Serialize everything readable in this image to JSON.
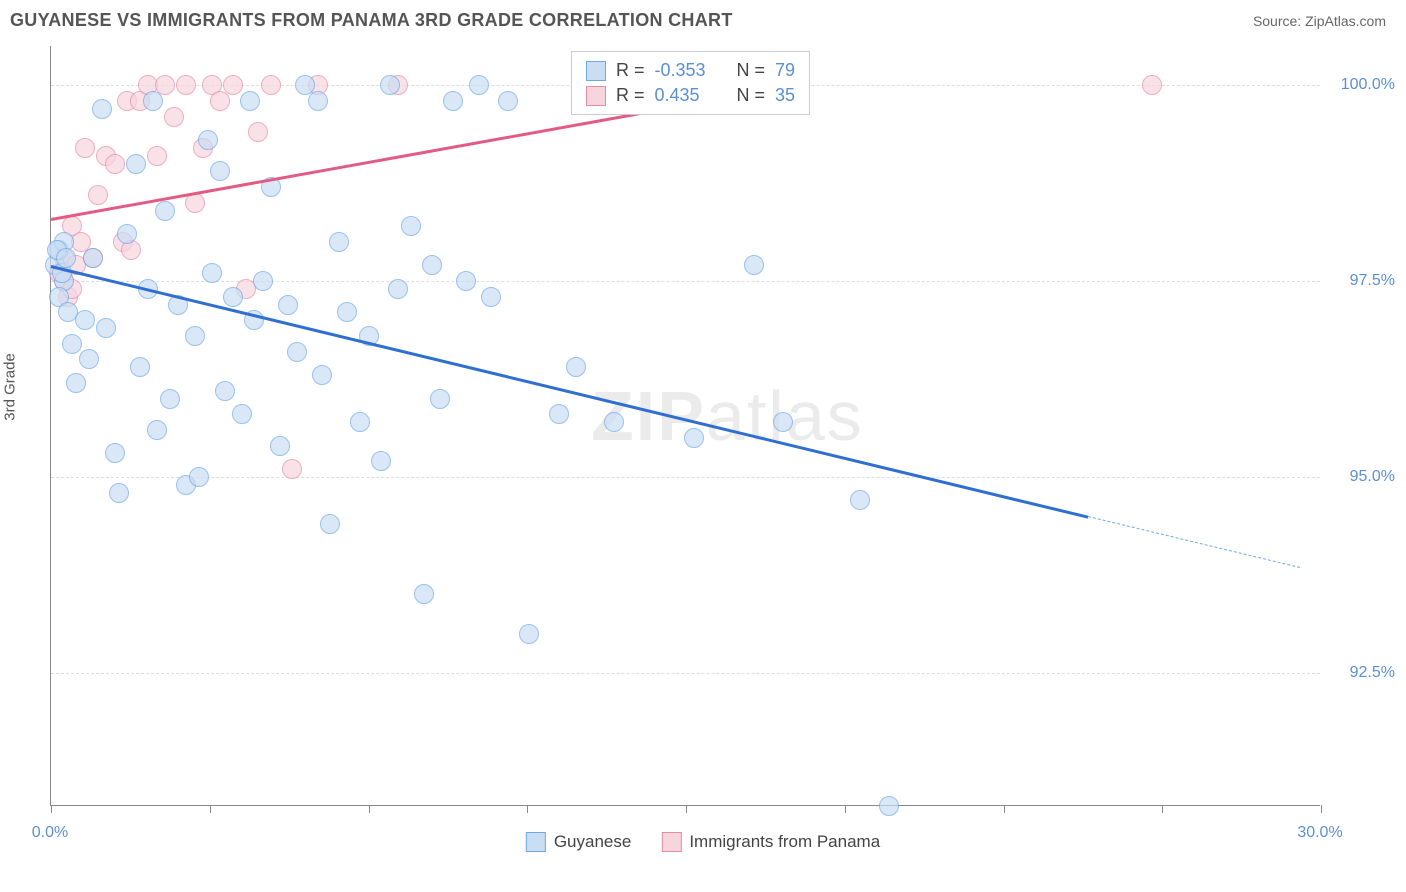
{
  "title": "GUYANESE VS IMMIGRANTS FROM PANAMA 3RD GRADE CORRELATION CHART",
  "source_label": "Source: ZipAtlas.com",
  "ylabel": "3rd Grade",
  "watermark": {
    "bold": "ZIP",
    "rest": "atlas"
  },
  "chart": {
    "type": "scatter",
    "xlim": [
      0,
      30
    ],
    "ylim": [
      90.8,
      100.5
    ],
    "xtick_positions": [
      0,
      3.75,
      7.5,
      11.25,
      15,
      18.75,
      22.5,
      26.25,
      30
    ],
    "xtick_labels": {
      "0": "0.0%",
      "30": "30.0%"
    },
    "ytick_positions": [
      92.5,
      95.0,
      97.5,
      100.0
    ],
    "ytick_labels": [
      "92.5%",
      "95.0%",
      "97.5%",
      "100.0%"
    ],
    "background_color": "#ffffff",
    "grid_color": "#dddddd",
    "axis_color": "#888888",
    "label_color": "#5b8fd6",
    "marker_radius": 10,
    "marker_stroke_width": 1.5,
    "series": [
      {
        "name": "Guyanese",
        "fill": "#c9ddf3",
        "stroke": "#6fa8e8",
        "fill_opacity": 0.7,
        "r": -0.353,
        "n": 79,
        "trend": {
          "x1": 0,
          "y1": 97.7,
          "x2": 24.5,
          "y2": 94.5,
          "color": "#2f6fd1",
          "width": 2.5
        },
        "trend_ext": {
          "x1": 24.5,
          "y1": 94.5,
          "x2": 29.5,
          "y2": 93.85,
          "color": "#6fa8e8"
        },
        "points": [
          [
            0.1,
            97.7
          ],
          [
            0.2,
            97.9
          ],
          [
            0.3,
            98.0
          ],
          [
            0.3,
            97.5
          ],
          [
            0.2,
            97.3
          ],
          [
            0.4,
            97.1
          ],
          [
            0.15,
            97.9
          ],
          [
            0.25,
            97.6
          ],
          [
            0.35,
            97.8
          ],
          [
            0.5,
            96.7
          ],
          [
            0.6,
            96.2
          ],
          [
            0.8,
            97.0
          ],
          [
            0.9,
            96.5
          ],
          [
            1.0,
            97.8
          ],
          [
            1.2,
            99.7
          ],
          [
            1.3,
            96.9
          ],
          [
            1.5,
            95.3
          ],
          [
            1.6,
            94.8
          ],
          [
            1.8,
            98.1
          ],
          [
            2.0,
            99.0
          ],
          [
            2.1,
            96.4
          ],
          [
            2.3,
            97.4
          ],
          [
            2.4,
            99.8
          ],
          [
            2.5,
            95.6
          ],
          [
            2.7,
            98.4
          ],
          [
            2.8,
            96.0
          ],
          [
            3.0,
            97.2
          ],
          [
            3.2,
            94.9
          ],
          [
            3.4,
            96.8
          ],
          [
            3.5,
            95.0
          ],
          [
            3.7,
            99.3
          ],
          [
            3.8,
            97.6
          ],
          [
            4.0,
            98.9
          ],
          [
            4.1,
            96.1
          ],
          [
            4.3,
            97.3
          ],
          [
            4.5,
            95.8
          ],
          [
            4.7,
            99.8
          ],
          [
            4.8,
            97.0
          ],
          [
            5.0,
            97.5
          ],
          [
            5.2,
            98.7
          ],
          [
            5.4,
            95.4
          ],
          [
            5.6,
            97.2
          ],
          [
            5.8,
            96.6
          ],
          [
            6.0,
            100.0
          ],
          [
            6.3,
            99.8
          ],
          [
            6.4,
            96.3
          ],
          [
            6.6,
            94.4
          ],
          [
            6.8,
            98.0
          ],
          [
            7.0,
            97.1
          ],
          [
            7.3,
            95.7
          ],
          [
            7.5,
            96.8
          ],
          [
            7.8,
            95.2
          ],
          [
            8.0,
            100.0
          ],
          [
            8.2,
            97.4
          ],
          [
            8.5,
            98.2
          ],
          [
            8.8,
            93.5
          ],
          [
            9.0,
            97.7
          ],
          [
            9.2,
            96.0
          ],
          [
            9.5,
            99.8
          ],
          [
            9.8,
            97.5
          ],
          [
            10.1,
            100.0
          ],
          [
            10.4,
            97.3
          ],
          [
            10.8,
            99.8
          ],
          [
            11.3,
            93.0
          ],
          [
            12.0,
            95.8
          ],
          [
            12.4,
            96.4
          ],
          [
            13.3,
            95.7
          ],
          [
            14.8,
            100.0
          ],
          [
            15.2,
            95.5
          ],
          [
            16.0,
            100.0
          ],
          [
            16.6,
            97.7
          ],
          [
            17.3,
            95.7
          ],
          [
            19.1,
            94.7
          ],
          [
            19.8,
            90.8
          ]
        ]
      },
      {
        "name": "Immigrants from Panama",
        "fill": "#f7d5df",
        "stroke": "#e88ba5",
        "fill_opacity": 0.7,
        "r": 0.435,
        "n": 35,
        "trend": {
          "x1": 0,
          "y1": 98.3,
          "x2": 17.5,
          "y2": 100.0,
          "color": "#e35b82",
          "width": 2.5
        },
        "points": [
          [
            0.2,
            97.6
          ],
          [
            0.3,
            97.8
          ],
          [
            0.4,
            97.3
          ],
          [
            0.5,
            98.2
          ],
          [
            0.3,
            97.5
          ],
          [
            0.5,
            97.4
          ],
          [
            0.6,
            97.7
          ],
          [
            0.7,
            98.0
          ],
          [
            0.8,
            99.2
          ],
          [
            1.0,
            97.8
          ],
          [
            1.1,
            98.6
          ],
          [
            1.3,
            99.1
          ],
          [
            1.5,
            99.0
          ],
          [
            1.7,
            98.0
          ],
          [
            1.8,
            99.8
          ],
          [
            1.9,
            97.9
          ],
          [
            2.1,
            99.8
          ],
          [
            2.3,
            100.0
          ],
          [
            2.5,
            99.1
          ],
          [
            2.7,
            100.0
          ],
          [
            2.9,
            99.6
          ],
          [
            3.2,
            100.0
          ],
          [
            3.4,
            98.5
          ],
          [
            3.6,
            99.2
          ],
          [
            3.8,
            100.0
          ],
          [
            4.0,
            99.8
          ],
          [
            4.3,
            100.0
          ],
          [
            4.6,
            97.4
          ],
          [
            4.9,
            99.4
          ],
          [
            5.2,
            100.0
          ],
          [
            5.7,
            95.1
          ],
          [
            6.3,
            100.0
          ],
          [
            8.2,
            100.0
          ],
          [
            17.6,
            100.0
          ],
          [
            26.0,
            100.0
          ]
        ]
      }
    ]
  },
  "legend": [
    {
      "label": "Guyanese",
      "fill": "#c9ddf3",
      "stroke": "#6fa8e8"
    },
    {
      "label": "Immigrants from Panama",
      "fill": "#f7d5df",
      "stroke": "#e88ba5"
    }
  ],
  "stat_box": {
    "rows": [
      {
        "swatch_fill": "#c9ddf3",
        "swatch_stroke": "#6fa8e8",
        "r": "-0.353",
        "n": "79"
      },
      {
        "swatch_fill": "#f7d5df",
        "swatch_stroke": "#e88ba5",
        "r": "0.435",
        "n": "35"
      }
    ]
  }
}
